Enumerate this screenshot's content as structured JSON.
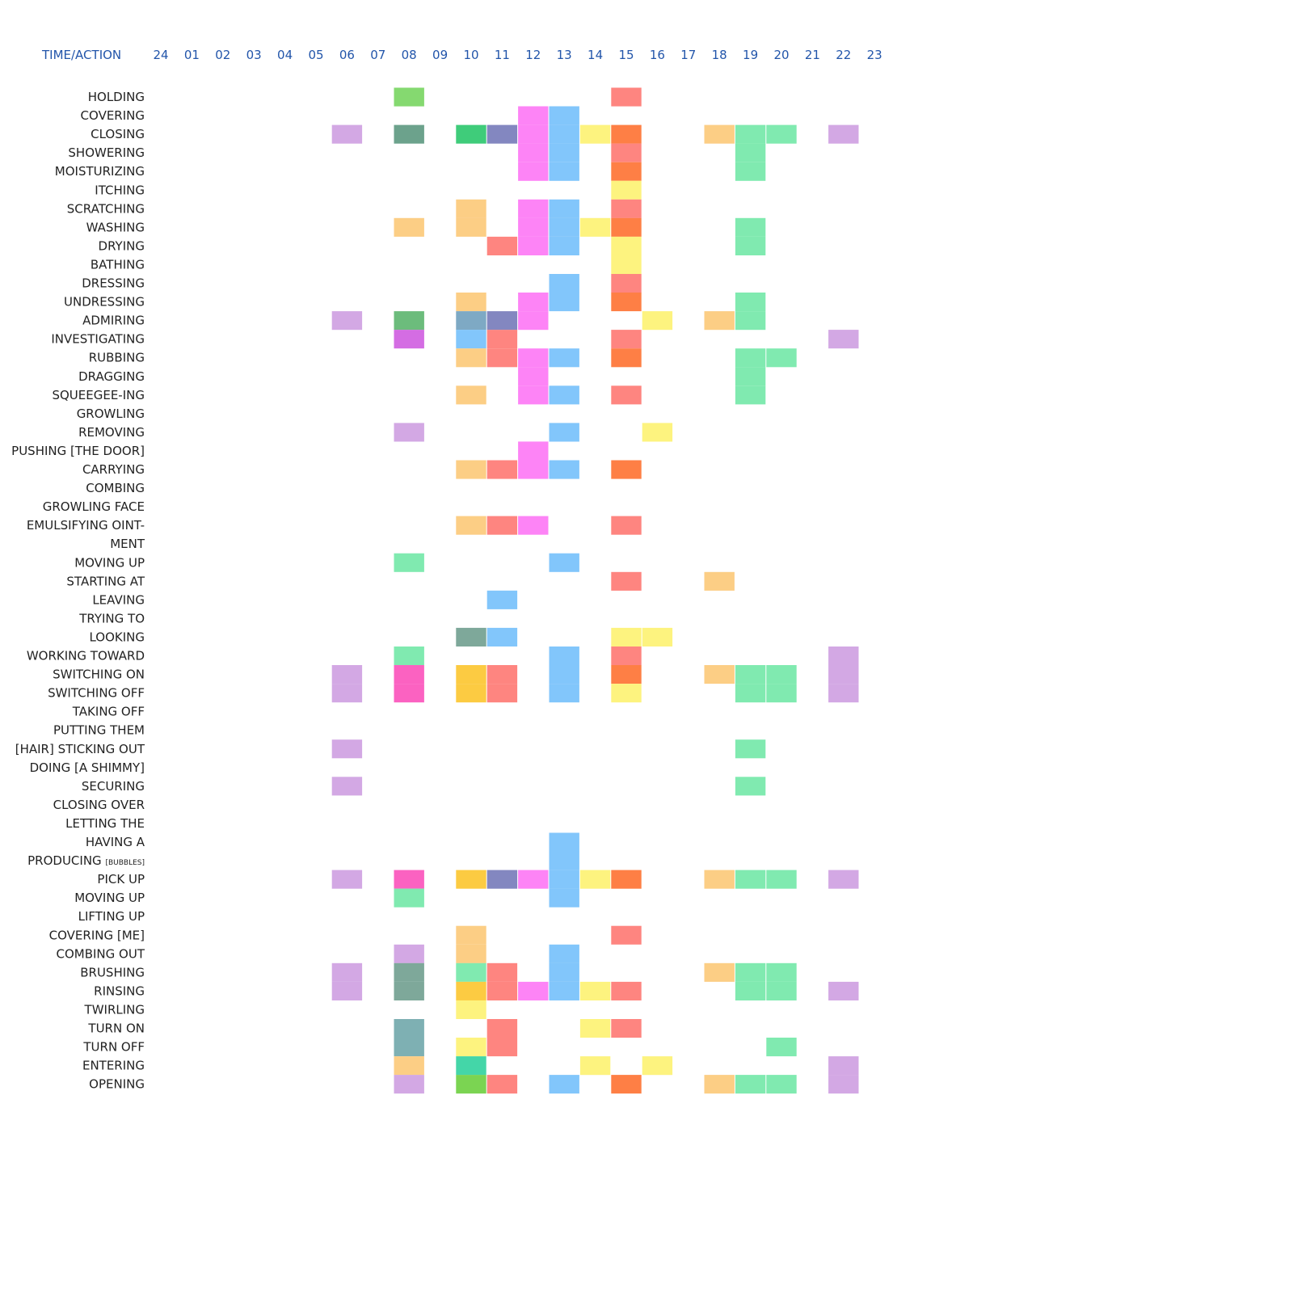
{
  "chart_data": {
    "type": "heatmap",
    "corner_label": "TIME/ACTION",
    "hours": [
      "24",
      "01",
      "02",
      "03",
      "04",
      "05",
      "06",
      "07",
      "08",
      "09",
      "10",
      "11",
      "12",
      "13",
      "14",
      "15",
      "16",
      "17",
      "18",
      "19",
      "20",
      "21",
      "22",
      "23"
    ],
    "palette": {
      "purple": "#d3a8e4",
      "green": "#80eab0",
      "lime": "#85d970",
      "darkteal": "#6ca28c",
      "teal": "#3fcc7a",
      "slate": "#8387c0",
      "pink": "#fd84f6",
      "blue": "#82c6fb",
      "yellow": "#fdf37f",
      "orange": "#fe7f45",
      "salmon": "#fe8580",
      "peach": "#fcce85",
      "steel": "#7ea9c4",
      "forest": "#6cbc7c",
      "magenta": "#d46de3",
      "hotpink": "#fb62c1",
      "gold": "#fccb42",
      "aqua": "#44d6a8",
      "grass": "#7bd452",
      "grayteal": "#7ea89a",
      "grayblue": "#7eb0b3"
    },
    "rows": [
      {
        "label": "HOLDING",
        "cells": [
          [
            8,
            "lime"
          ],
          [
            15,
            "salmon"
          ]
        ]
      },
      {
        "label": "COVERING",
        "cells": [
          [
            12,
            "pink"
          ],
          [
            13,
            "blue"
          ]
        ]
      },
      {
        "label": "CLOSING",
        "cells": [
          [
            6,
            "purple"
          ],
          [
            8,
            "darkteal"
          ],
          [
            10,
            "teal"
          ],
          [
            11,
            "slate"
          ],
          [
            12,
            "pink"
          ],
          [
            13,
            "blue"
          ],
          [
            14,
            "yellow"
          ],
          [
            15,
            "orange"
          ],
          [
            18,
            "peach"
          ],
          [
            19,
            "green"
          ],
          [
            20,
            "green"
          ],
          [
            22,
            "purple"
          ]
        ]
      },
      {
        "label": "SHOWERING",
        "cells": [
          [
            12,
            "pink"
          ],
          [
            13,
            "blue"
          ],
          [
            15,
            "salmon"
          ],
          [
            19,
            "green"
          ]
        ]
      },
      {
        "label": "MOISTURIZING",
        "cells": [
          [
            12,
            "pink"
          ],
          [
            13,
            "blue"
          ],
          [
            15,
            "orange"
          ],
          [
            19,
            "green"
          ]
        ]
      },
      {
        "label": "ITCHING",
        "cells": [
          [
            15,
            "yellow"
          ]
        ]
      },
      {
        "label": "SCRATCHING",
        "cells": [
          [
            10,
            "peach"
          ],
          [
            12,
            "pink"
          ],
          [
            13,
            "blue"
          ],
          [
            15,
            "salmon"
          ]
        ]
      },
      {
        "label": "WASHING",
        "cells": [
          [
            8,
            "peach"
          ],
          [
            10,
            "peach"
          ],
          [
            12,
            "pink"
          ],
          [
            13,
            "blue"
          ],
          [
            14,
            "yellow"
          ],
          [
            15,
            "orange"
          ],
          [
            19,
            "green"
          ]
        ]
      },
      {
        "label": "DRYING",
        "cells": [
          [
            11,
            "salmon"
          ],
          [
            12,
            "pink"
          ],
          [
            13,
            "blue"
          ],
          [
            15,
            "yellow"
          ],
          [
            19,
            "green"
          ]
        ]
      },
      {
        "label": "BATHING",
        "cells": [
          [
            15,
            "yellow"
          ]
        ]
      },
      {
        "label": "DRESSING",
        "cells": [
          [
            13,
            "blue"
          ],
          [
            15,
            "salmon"
          ]
        ]
      },
      {
        "label": "UNDRESSING",
        "cells": [
          [
            10,
            "peach"
          ],
          [
            12,
            "pink"
          ],
          [
            13,
            "blue"
          ],
          [
            15,
            "orange"
          ],
          [
            19,
            "green"
          ]
        ]
      },
      {
        "label": "ADMIRING",
        "cells": [
          [
            6,
            "purple"
          ],
          [
            8,
            "forest"
          ],
          [
            10,
            "steel"
          ],
          [
            11,
            "slate"
          ],
          [
            12,
            "pink"
          ],
          [
            16,
            "yellow"
          ],
          [
            18,
            "peach"
          ],
          [
            19,
            "green"
          ]
        ]
      },
      {
        "label": "INVESTIGATING",
        "cells": [
          [
            8,
            "magenta"
          ],
          [
            10,
            "blue"
          ],
          [
            11,
            "salmon"
          ],
          [
            15,
            "salmon"
          ],
          [
            22,
            "purple"
          ]
        ]
      },
      {
        "label": "RUBBING",
        "cells": [
          [
            10,
            "peach"
          ],
          [
            11,
            "salmon"
          ],
          [
            12,
            "pink"
          ],
          [
            13,
            "blue"
          ],
          [
            15,
            "orange"
          ],
          [
            19,
            "green"
          ],
          [
            20,
            "green"
          ]
        ]
      },
      {
        "label": "DRAGGING",
        "cells": [
          [
            12,
            "pink"
          ],
          [
            19,
            "green"
          ]
        ]
      },
      {
        "label": "SQUEEGEE-ING",
        "cells": [
          [
            10,
            "peach"
          ],
          [
            12,
            "pink"
          ],
          [
            13,
            "blue"
          ],
          [
            15,
            "salmon"
          ],
          [
            19,
            "green"
          ]
        ]
      },
      {
        "label": "GROWLING",
        "cells": []
      },
      {
        "label": "REMOVING",
        "cells": [
          [
            8,
            "purple"
          ],
          [
            13,
            "blue"
          ],
          [
            16,
            "yellow"
          ]
        ]
      },
      {
        "label": "PUSHING [THE DOOR]",
        "cells": [
          [
            12,
            "pink"
          ]
        ]
      },
      {
        "label": "CARRYING",
        "cells": [
          [
            10,
            "peach"
          ],
          [
            11,
            "salmon"
          ],
          [
            12,
            "pink"
          ],
          [
            13,
            "blue"
          ],
          [
            15,
            "orange"
          ]
        ]
      },
      {
        "label": "COMBING",
        "cells": []
      },
      {
        "label": "GROWLING FACE",
        "cells": []
      },
      {
        "label": "EMULSIFYING OINT-",
        "cells": [
          [
            10,
            "peach"
          ],
          [
            11,
            "salmon"
          ],
          [
            12,
            "pink"
          ],
          [
            15,
            "salmon"
          ]
        ]
      },
      {
        "label": "MENT",
        "cells": []
      },
      {
        "label": "MOVING UP",
        "cells": [
          [
            8,
            "green"
          ],
          [
            13,
            "blue"
          ]
        ]
      },
      {
        "label": "STARTING AT",
        "cells": [
          [
            15,
            "salmon"
          ],
          [
            18,
            "peach"
          ]
        ]
      },
      {
        "label": "LEAVING",
        "cells": [
          [
            11,
            "blue"
          ]
        ]
      },
      {
        "label": "TRYING TO",
        "cells": []
      },
      {
        "label": "LOOKING",
        "cells": [
          [
            10,
            "grayteal"
          ],
          [
            11,
            "blue"
          ],
          [
            15,
            "yellow"
          ],
          [
            16,
            "yellow"
          ]
        ]
      },
      {
        "label": "WORKING TOWARD",
        "cells": [
          [
            8,
            "green"
          ],
          [
            13,
            "blue"
          ],
          [
            15,
            "salmon"
          ],
          [
            22,
            "purple"
          ]
        ]
      },
      {
        "label": "SWITCHING ON",
        "cells": [
          [
            6,
            "purple"
          ],
          [
            8,
            "hotpink"
          ],
          [
            10,
            "gold"
          ],
          [
            11,
            "salmon"
          ],
          [
            13,
            "blue"
          ],
          [
            15,
            "orange"
          ],
          [
            18,
            "peach"
          ],
          [
            19,
            "green"
          ],
          [
            20,
            "green"
          ],
          [
            22,
            "purple"
          ]
        ]
      },
      {
        "label": "SWITCHING OFF",
        "cells": [
          [
            6,
            "purple"
          ],
          [
            8,
            "hotpink"
          ],
          [
            10,
            "gold"
          ],
          [
            11,
            "salmon"
          ],
          [
            13,
            "blue"
          ],
          [
            15,
            "yellow"
          ],
          [
            19,
            "green"
          ],
          [
            20,
            "green"
          ],
          [
            22,
            "purple"
          ]
        ]
      },
      {
        "label": "TAKING OFF",
        "cells": []
      },
      {
        "label": "PUTTING THEM",
        "cells": []
      },
      {
        "label": "[HAIR] STICKING OUT",
        "cells": [
          [
            6,
            "purple"
          ],
          [
            19,
            "green"
          ]
        ]
      },
      {
        "label": "DOING [A SHIMMY]",
        "cells": []
      },
      {
        "label": "SECURING",
        "cells": [
          [
            6,
            "purple"
          ],
          [
            19,
            "green"
          ]
        ]
      },
      {
        "label": "CLOSING OVER",
        "cells": []
      },
      {
        "label": "LETTING THE",
        "cells": []
      },
      {
        "label": "HAVING A",
        "cells": [
          [
            13,
            "blue"
          ]
        ]
      },
      {
        "label": "PRODUCING",
        "note": "[BUBBLES]",
        "cells": [
          [
            13,
            "blue"
          ]
        ]
      },
      {
        "label": "PICK UP",
        "cells": [
          [
            6,
            "purple"
          ],
          [
            8,
            "hotpink"
          ],
          [
            10,
            "gold"
          ],
          [
            11,
            "slate"
          ],
          [
            12,
            "pink"
          ],
          [
            13,
            "blue"
          ],
          [
            14,
            "yellow"
          ],
          [
            15,
            "orange"
          ],
          [
            18,
            "peach"
          ],
          [
            19,
            "green"
          ],
          [
            20,
            "green"
          ],
          [
            22,
            "purple"
          ]
        ]
      },
      {
        "label": "MOVING UP",
        "cells": [
          [
            8,
            "green"
          ],
          [
            13,
            "blue"
          ]
        ]
      },
      {
        "label": "LIFTING UP",
        "cells": []
      },
      {
        "label": "COVERING [ME]",
        "cells": [
          [
            10,
            "peach"
          ],
          [
            15,
            "salmon"
          ]
        ]
      },
      {
        "label": "COMBING OUT",
        "cells": [
          [
            8,
            "purple"
          ],
          [
            10,
            "peach"
          ],
          [
            13,
            "blue"
          ]
        ]
      },
      {
        "label": "BRUSHING",
        "cells": [
          [
            6,
            "purple"
          ],
          [
            8,
            "grayteal"
          ],
          [
            10,
            "green"
          ],
          [
            11,
            "salmon"
          ],
          [
            13,
            "blue"
          ],
          [
            18,
            "peach"
          ],
          [
            19,
            "green"
          ],
          [
            20,
            "green"
          ]
        ]
      },
      {
        "label": "RINSING",
        "cells": [
          [
            6,
            "purple"
          ],
          [
            8,
            "grayteal"
          ],
          [
            10,
            "gold"
          ],
          [
            11,
            "salmon"
          ],
          [
            12,
            "pink"
          ],
          [
            13,
            "blue"
          ],
          [
            14,
            "yellow"
          ],
          [
            15,
            "salmon"
          ],
          [
            19,
            "green"
          ],
          [
            20,
            "green"
          ],
          [
            22,
            "purple"
          ]
        ]
      },
      {
        "label": "TWIRLING",
        "cells": [
          [
            10,
            "yellow"
          ]
        ]
      },
      {
        "label": "TURN ON",
        "cells": [
          [
            8,
            "grayblue"
          ],
          [
            11,
            "salmon"
          ],
          [
            14,
            "yellow"
          ],
          [
            15,
            "salmon"
          ]
        ]
      },
      {
        "label": "TURN OFF",
        "cells": [
          [
            8,
            "grayblue"
          ],
          [
            10,
            "yellow"
          ],
          [
            11,
            "salmon"
          ],
          [
            20,
            "green"
          ]
        ]
      },
      {
        "label": "ENTERING",
        "cells": [
          [
            8,
            "peach"
          ],
          [
            10,
            "aqua"
          ],
          [
            14,
            "yellow"
          ],
          [
            16,
            "yellow"
          ],
          [
            22,
            "purple"
          ]
        ]
      },
      {
        "label": "OPENING",
        "cells": [
          [
            8,
            "purple"
          ],
          [
            10,
            "grass"
          ],
          [
            11,
            "salmon"
          ],
          [
            13,
            "blue"
          ],
          [
            15,
            "orange"
          ],
          [
            18,
            "peach"
          ],
          [
            19,
            "green"
          ],
          [
            20,
            "green"
          ],
          [
            22,
            "purple"
          ]
        ]
      }
    ]
  }
}
